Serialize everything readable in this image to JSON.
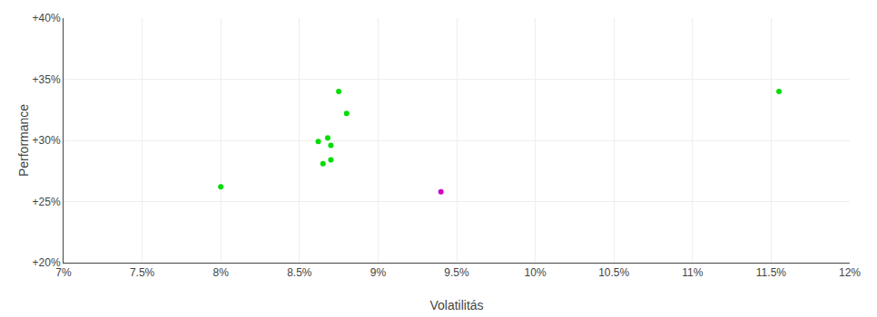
{
  "chart_data": {
    "type": "scatter",
    "xlabel": "Volatilitás",
    "ylabel": "Performance",
    "xlim": [
      0.07,
      0.12
    ],
    "ylim": [
      0.2,
      0.4
    ],
    "xticks": [
      {
        "value": 0.07,
        "label": "7%"
      },
      {
        "value": 0.075,
        "label": "7.5%"
      },
      {
        "value": 0.08,
        "label": "8%"
      },
      {
        "value": 0.085,
        "label": "8.5%"
      },
      {
        "value": 0.09,
        "label": "9%"
      },
      {
        "value": 0.095,
        "label": "9.5%"
      },
      {
        "value": 0.1,
        "label": "10%"
      },
      {
        "value": 0.105,
        "label": "10.5%"
      },
      {
        "value": 0.11,
        "label": "11%"
      },
      {
        "value": 0.115,
        "label": "11.5%"
      },
      {
        "value": 0.12,
        "label": "12%"
      }
    ],
    "yticks": [
      {
        "value": 0.2,
        "label": "+20%"
      },
      {
        "value": 0.25,
        "label": "+25%"
      },
      {
        "value": 0.3,
        "label": "+30%"
      },
      {
        "value": 0.35,
        "label": "+35%"
      },
      {
        "value": 0.4,
        "label": "+40%"
      }
    ],
    "grid": true,
    "series": [
      {
        "color": "#00dd00",
        "x": [
          0.08,
          0.0875,
          0.088,
          0.0868,
          0.0862,
          0.087,
          0.087,
          0.0865,
          0.1155
        ],
        "values": [
          0.262,
          0.34,
          0.322,
          0.302,
          0.299,
          0.296,
          0.284,
          0.281,
          0.34
        ]
      },
      {
        "color": "#cc00cc",
        "x": [
          0.094
        ],
        "values": [
          0.258
        ]
      }
    ]
  }
}
